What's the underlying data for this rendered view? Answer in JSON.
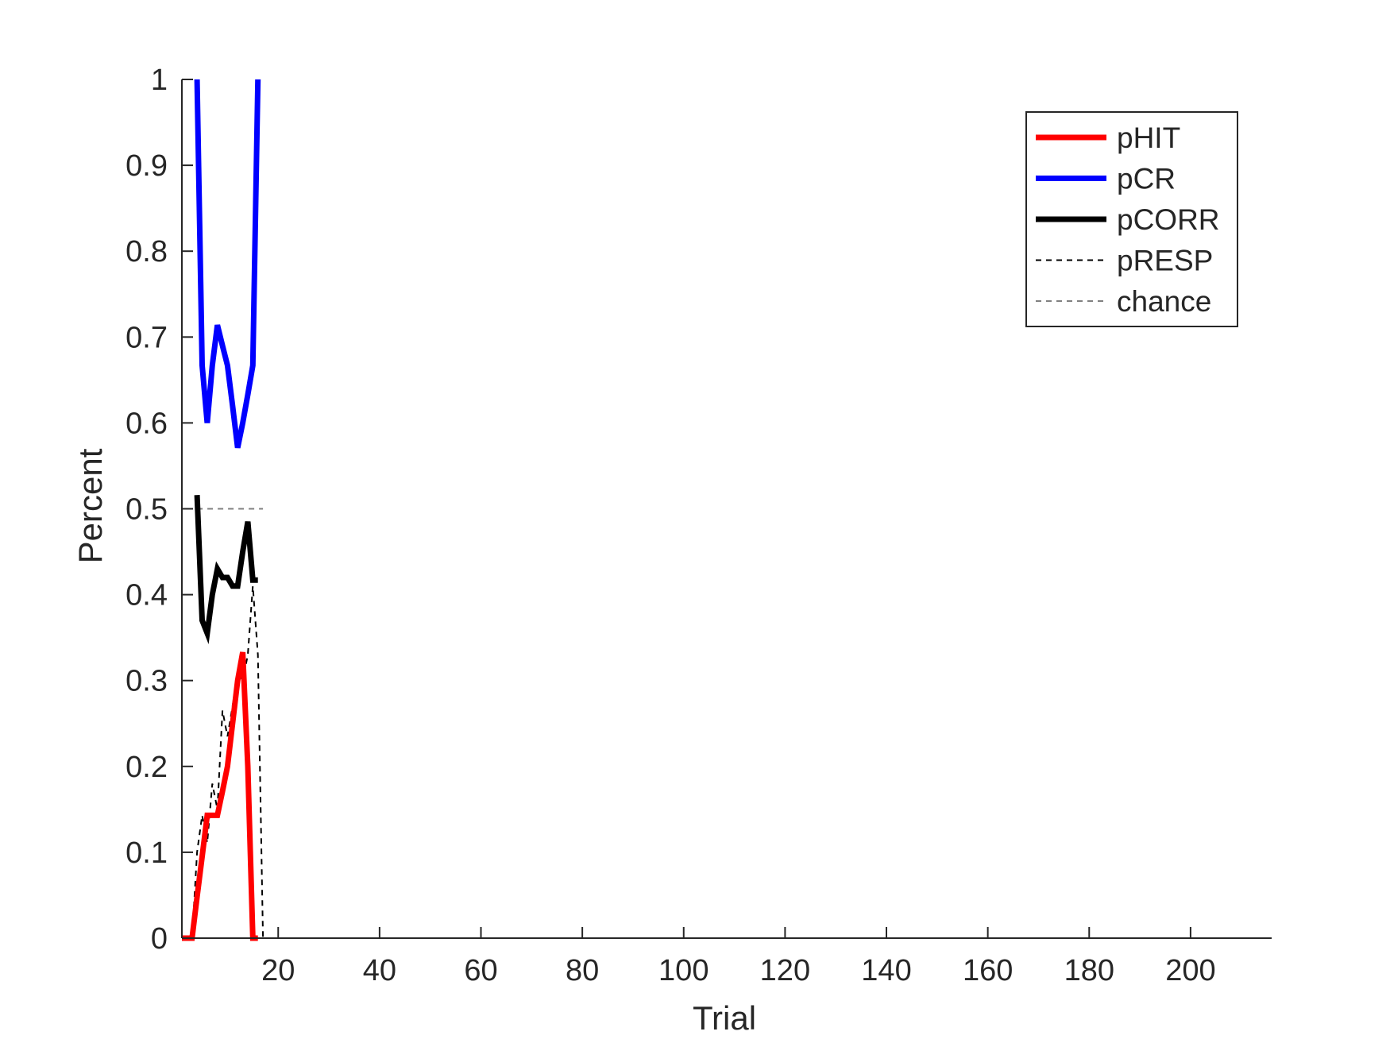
{
  "chart_data": {
    "type": "line",
    "title": "",
    "xlabel": "Trial",
    "ylabel": "Percent",
    "xlim": [
      1,
      216
    ],
    "ylim": [
      0,
      1
    ],
    "xticks": [
      20,
      40,
      60,
      80,
      100,
      120,
      140,
      160,
      180,
      200
    ],
    "yticks": [
      0,
      0.1,
      0.2,
      0.3,
      0.4,
      0.5,
      0.6,
      0.7,
      0.8,
      0.9,
      1
    ],
    "grid": false,
    "legend_position": "top-right",
    "series": [
      {
        "name": "pHIT",
        "color": "#ff0000",
        "style": "solid-thick",
        "x": [
          1,
          2,
          3,
          4,
          5,
          6,
          7,
          8,
          9,
          10,
          11,
          12,
          13,
          14,
          15,
          16
        ],
        "y": [
          0,
          0,
          0,
          0.048,
          0.095,
          0.143,
          0.143,
          0.143,
          0.171,
          0.2,
          0.25,
          0.3,
          0.333,
          0.2,
          0,
          0
        ]
      },
      {
        "name": "pCR",
        "color": "#0000ff",
        "style": "solid-thick",
        "x": [
          4,
          5,
          6,
          7,
          8,
          9,
          10,
          11,
          12,
          13,
          14,
          15,
          16
        ],
        "y": [
          1,
          0.667,
          0.6,
          0.667,
          0.714,
          0.69,
          0.667,
          0.62,
          0.571,
          0.6,
          0.633,
          0.667,
          1
        ]
      },
      {
        "name": "pCORR",
        "color": "#000000",
        "style": "solid-thick",
        "x": [
          4,
          5,
          6,
          7,
          8,
          9,
          10,
          11,
          12,
          13,
          14,
          15,
          16
        ],
        "y": [
          0.516,
          0.37,
          0.355,
          0.4,
          0.43,
          0.42,
          0.42,
          0.41,
          0.41,
          0.45,
          0.485,
          0.417,
          0.417
        ]
      },
      {
        "name": "pRESP",
        "color": "#000000",
        "style": "dashed-thin",
        "x": [
          1,
          2,
          3,
          4,
          5,
          6,
          7,
          8,
          9,
          10,
          11,
          12,
          13,
          14,
          15,
          16,
          17
        ],
        "y": [
          0,
          0,
          0,
          0.1,
          0.143,
          0.111,
          0.18,
          0.15,
          0.265,
          0.235,
          0.27,
          0.31,
          0.3,
          0.33,
          0.41,
          0.33,
          0
        ]
      },
      {
        "name": "chance",
        "color": "#808080",
        "style": "dashed-thin",
        "x": [
          4,
          17
        ],
        "y": [
          0.5,
          0.5
        ]
      }
    ]
  }
}
